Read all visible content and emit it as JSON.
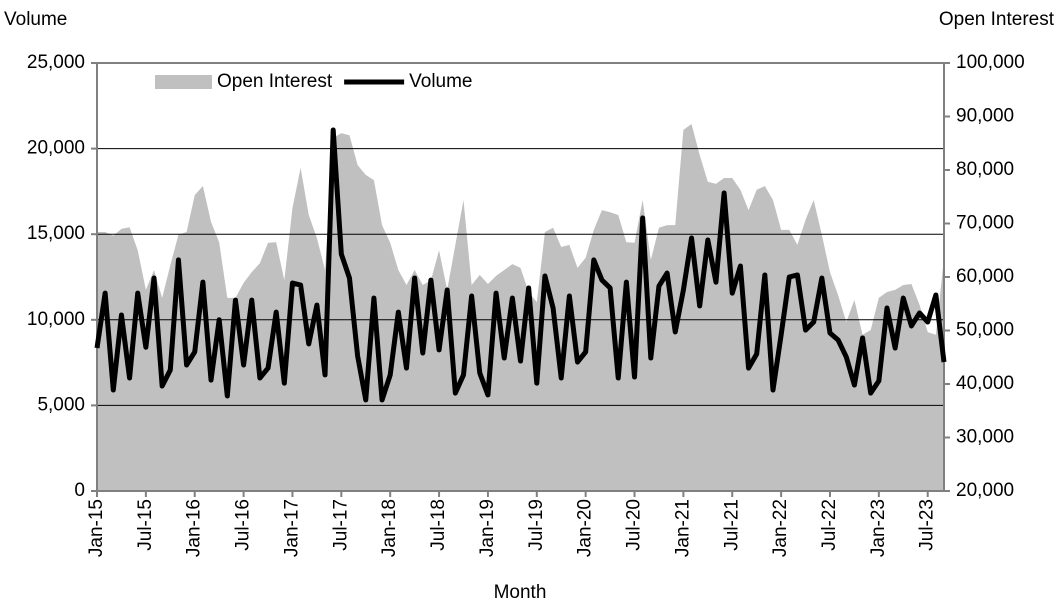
{
  "chart_data": {
    "type": "line",
    "x_label": "Month",
    "y_label": "Volume",
    "y2_label": "Open Interest",
    "categories": [
      "Jan-15",
      null,
      null,
      null,
      null,
      null,
      "Jul-15",
      null,
      null,
      null,
      null,
      null,
      "Jan-16",
      null,
      null,
      null,
      null,
      null,
      "Jul-16",
      null,
      null,
      null,
      null,
      null,
      "Jan-17",
      null,
      null,
      null,
      null,
      null,
      "Jul-17",
      null,
      null,
      null,
      null,
      null,
      "Jan-18",
      null,
      null,
      null,
      null,
      null,
      "Jul-18",
      null,
      null,
      null,
      null,
      null,
      "Jan-19",
      null,
      null,
      null,
      null,
      null,
      "Jul-19",
      null,
      null,
      null,
      null,
      null,
      "Jan-20",
      null,
      null,
      null,
      null,
      null,
      "Jul-20",
      null,
      null,
      null,
      null,
      null,
      "Jan-21",
      null,
      null,
      null,
      null,
      null,
      "Jul-21",
      null,
      null,
      null,
      null,
      null,
      "Jan-22",
      null,
      null,
      null,
      null,
      null,
      "Jul-22",
      null,
      null,
      null,
      null,
      null,
      "Jan-23",
      null,
      null,
      null,
      null,
      null,
      "Jul-23",
      null,
      null
    ],
    "series": [
      {
        "name": "Open Interest",
        "type": "area",
        "axis": "y2",
        "color": "#c0c0c0",
        "values": [
          68400,
          68400,
          67700,
          69000,
          69300,
          65000,
          57600,
          61300,
          56100,
          62200,
          67900,
          68400,
          75300,
          77000,
          70300,
          66500,
          56100,
          56100,
          58900,
          60900,
          62600,
          66400,
          66500,
          59400,
          72900,
          80400,
          71600,
          67300,
          61300,
          86000,
          86900,
          86500,
          80900,
          79100,
          78100,
          69700,
          66400,
          61300,
          58500,
          61300,
          58500,
          59400,
          65000,
          57600,
          66000,
          74400,
          58500,
          60400,
          58700,
          60200,
          61300,
          62400,
          61700,
          57200,
          55300,
          68400,
          69200,
          65600,
          66000,
          61700,
          63600,
          68800,
          72500,
          72100,
          71600,
          66500,
          66400,
          74400,
          63200,
          69200,
          69700,
          69700,
          87500,
          88600,
          82800,
          77800,
          77400,
          78500,
          78500,
          76300,
          72500,
          76300,
          77000,
          74400,
          68800,
          68800,
          66000,
          70700,
          74400,
          67900,
          60900,
          56600,
          51600,
          55700,
          49200,
          50100,
          56100,
          57200,
          57600,
          58500,
          58700,
          54800,
          49700,
          49200,
          63600
        ]
      },
      {
        "name": "Volume",
        "type": "line",
        "color": "#000000",
        "values": [
          8350,
          11560,
          5900,
          10280,
          6600,
          11560,
          8400,
          12440,
          6130,
          7070,
          13500,
          7360,
          8120,
          12200,
          6480,
          10000,
          5550,
          11150,
          7360,
          11150,
          6600,
          7180,
          10450,
          6300,
          12150,
          12030,
          8590,
          10860,
          6780,
          21090,
          13840,
          12440,
          7890,
          5320,
          11270,
          5320,
          6780,
          10450,
          7180,
          12440,
          8060,
          12320,
          8240,
          11740,
          5720,
          6780,
          11390,
          6890,
          5610,
          11560,
          7770,
          11270,
          7590,
          11860,
          6300,
          12560,
          10690,
          6600,
          11390,
          7530,
          8120,
          13500,
          12320,
          11860,
          6600,
          12200,
          6660,
          15950,
          7770,
          11970,
          12730,
          9290,
          11740,
          14780,
          10810,
          14660,
          12200,
          17410,
          11560,
          13140,
          7180,
          8000,
          12620,
          5900,
          9110,
          12500,
          12620,
          9400,
          9870,
          12440,
          9230,
          8820,
          7830,
          6190,
          8940,
          5720,
          6430,
          10690,
          8350,
          11270,
          9640,
          10400,
          9870,
          11450,
          7530
        ]
      }
    ],
    "ylim": [
      0,
      25000
    ],
    "yticks": [
      0,
      {
        "value": 5000,
        "label": "5,000"
      },
      {
        "value": 10000,
        "label": "10,000"
      },
      {
        "value": 15000,
        "label": "15,000"
      },
      {
        "value": 20000,
        "label": "20,000"
      },
      {
        "value": 25000,
        "label": "25,000"
      }
    ],
    "y2lim": [
      20000,
      100000
    ],
    "y2ticks": [
      {
        "value": 20000,
        "label": "20,000"
      },
      {
        "value": 30000,
        "label": "30,000"
      },
      {
        "value": 40000,
        "label": "40,000"
      },
      {
        "value": 50000,
        "label": "50,000"
      },
      {
        "value": 60000,
        "label": "60,000"
      },
      {
        "value": 70000,
        "label": "70,000"
      },
      {
        "value": 80000,
        "label": "80,000"
      },
      {
        "value": 90000,
        "label": "90,000"
      },
      {
        "value": 100000,
        "label": "100,000"
      }
    ],
    "grid": true,
    "legend": "top-left"
  }
}
